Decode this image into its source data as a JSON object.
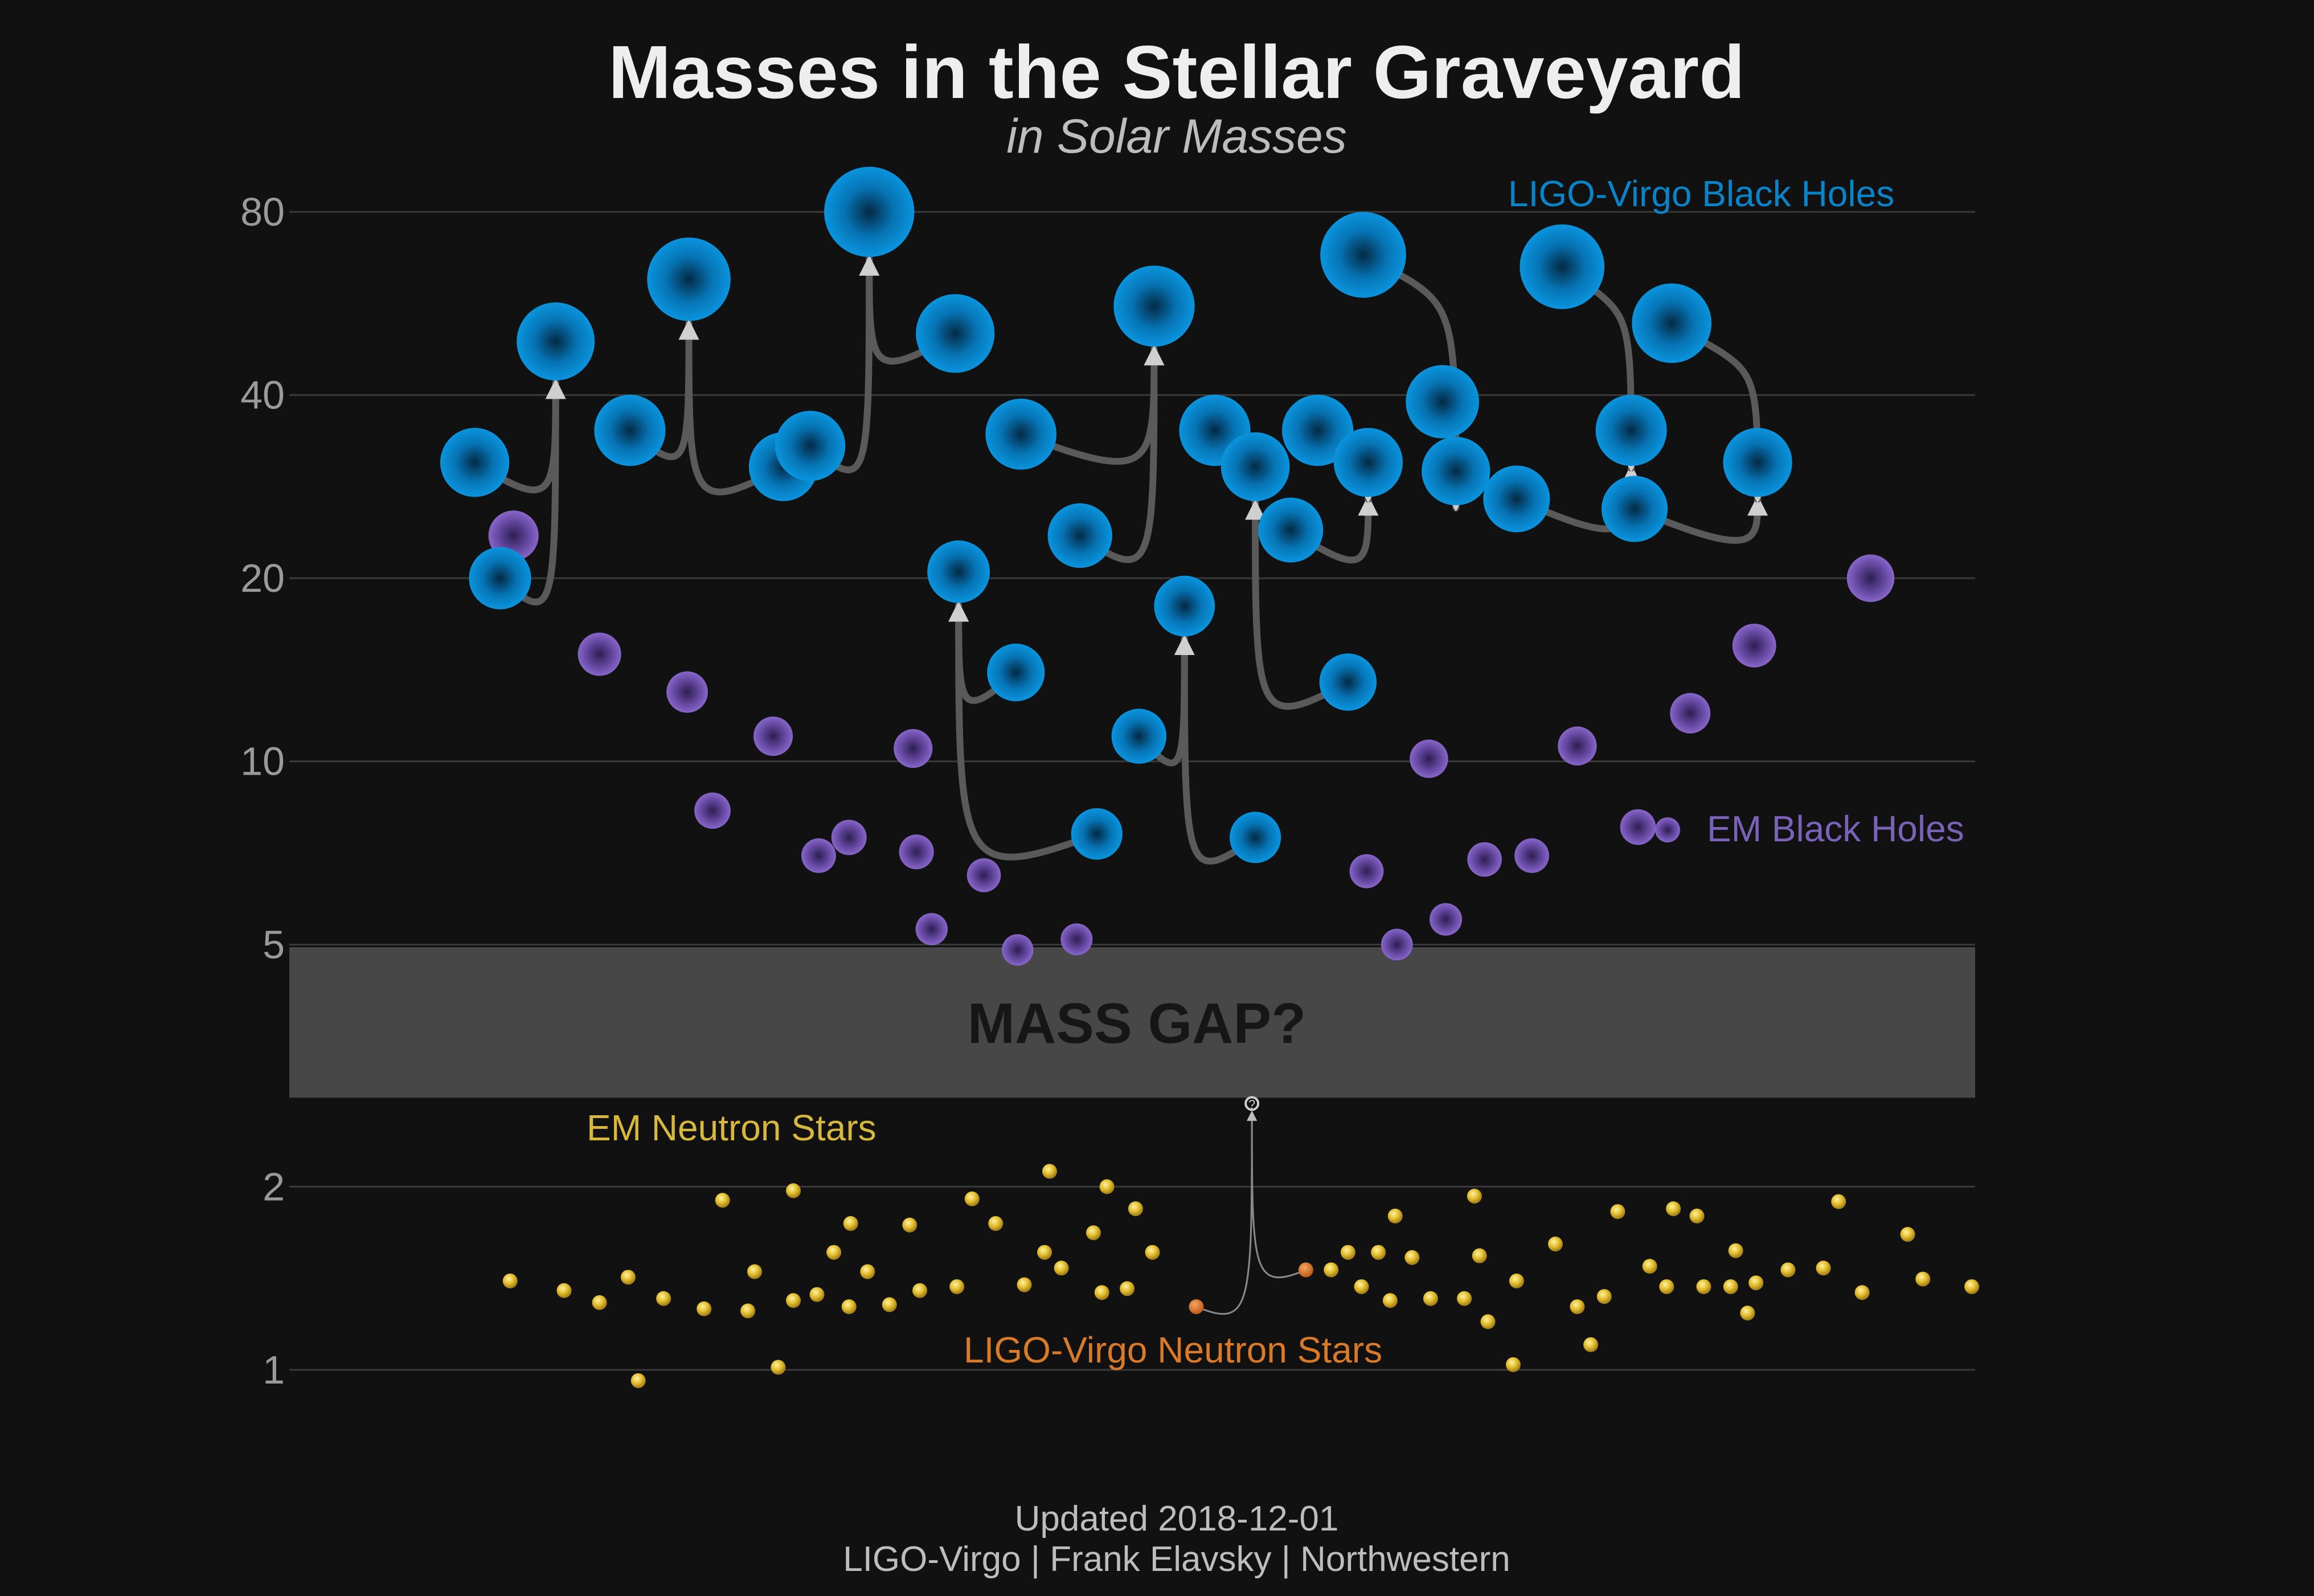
{
  "chart_data": {
    "type": "scatter",
    "title": "Masses in the Stellar Graveyard",
    "subtitle": "in Solar Masses",
    "y_scale": "log",
    "ylim": [
      0.75,
      95
    ],
    "y_ticks": [
      1,
      2,
      5,
      10,
      20,
      40,
      80
    ],
    "grid": true,
    "mass_gap": {
      "label": "MASS GAP?",
      "range": [
        2.8,
        4.95
      ]
    },
    "footer": [
      "Updated 2018-12-01",
      "LIGO-Virgo | Frank Elavsky | Northwestern"
    ],
    "series_labels": {
      "ligo_bh": "LIGO-Virgo Black Holes",
      "em_bh": "EM Black Holes",
      "em_ns": "EM Neutron Stars",
      "ligo_ns": "LIGO-Virgo Neutron Stars"
    },
    "colors": {
      "ligo_bh": "#0a8fd8",
      "em_bh": "#7a5bb8",
      "em_ns": "#e6c234",
      "ligo_ns": "#e07a1e",
      "arrow": "#5a5a5a",
      "gap": "#474747",
      "background": "#111111"
    },
    "ligo_mergers": [
      {
        "p1": [
          0.11,
          31
        ],
        "p2": [
          0.125,
          20
        ],
        "final": [
          0.158,
          49
        ]
      },
      {
        "p1": [
          0.202,
          35
        ],
        "p2": [
          0.293,
          30.5
        ],
        "final": [
          0.237,
          62
        ]
      },
      {
        "p1": [
          0.309,
          33
        ],
        "p2": [
          0.395,
          50.5
        ],
        "final": [
          0.344,
          80
        ]
      },
      {
        "p1": [
          0.431,
          14
        ],
        "p2": [
          0.479,
          7.6
        ],
        "final": [
          0.397,
          20.5
        ]
      },
      {
        "p1": [
          0.469,
          23.5
        ],
        "p2": [
          0.434,
          34.5
        ],
        "final": [
          0.513,
          56
        ]
      },
      {
        "p1": [
          0.504,
          11
        ],
        "p2": [
          0.573,
          7.5
        ],
        "final": [
          0.531,
          18
        ]
      },
      {
        "p1": [
          0.549,
          35
        ],
        "p2": [
          0.628,
          13.5
        ],
        "final": [
          0.573,
          30.5
        ]
      },
      {
        "p1": [
          0.594,
          24
        ],
        "p2": [
          0.61,
          35
        ],
        "final": [
          0.64,
          31
        ]
      },
      {
        "p1": [
          0.637,
          68
        ],
        "p2": [
          0.684,
          39
        ],
        "final": [
          0.692,
          30
        ]
      },
      {
        "p1": [
          0.728,
          27
        ],
        "p2": [
          0.755,
          65
        ],
        "final": [
          0.796,
          35
        ]
      },
      {
        "p1": [
          0.798,
          26
        ],
        "p2": [
          0.82,
          52.5
        ],
        "final": [
          0.871,
          31
        ]
      }
    ],
    "em_black_holes": [
      [
        0.133,
        23.5
      ],
      [
        0.184,
        15
      ],
      [
        0.236,
        13
      ],
      [
        0.251,
        8.3
      ],
      [
        0.287,
        11
      ],
      [
        0.314,
        7
      ],
      [
        0.332,
        7.5
      ],
      [
        0.37,
        10.5
      ],
      [
        0.372,
        7.1
      ],
      [
        0.412,
        6.5
      ],
      [
        0.381,
        5.3
      ],
      [
        0.432,
        4.9
      ],
      [
        0.467,
        5.1
      ],
      [
        0.639,
        6.6
      ],
      [
        0.657,
        5
      ],
      [
        0.676,
        10.1
      ],
      [
        0.686,
        5.5
      ],
      [
        0.709,
        6.9
      ],
      [
        0.737,
        7
      ],
      [
        0.764,
        10.6
      ],
      [
        0.8,
        7.8
      ],
      [
        0.831,
        12
      ],
      [
        0.869,
        15.5
      ],
      [
        0.938,
        20
      ]
    ],
    "em_neutron_stars": [
      [
        0.131,
        1.4
      ],
      [
        0.163,
        1.35
      ],
      [
        0.184,
        1.29
      ],
      [
        0.201,
        1.42
      ],
      [
        0.207,
        0.96
      ],
      [
        0.222,
        1.31
      ],
      [
        0.246,
        1.26
      ],
      [
        0.257,
        1.9
      ],
      [
        0.272,
        1.25
      ],
      [
        0.276,
        1.45
      ],
      [
        0.29,
        1.01
      ],
      [
        0.299,
        1.3
      ],
      [
        0.299,
        1.97
      ],
      [
        0.313,
        1.33
      ],
      [
        0.323,
        1.56
      ],
      [
        0.332,
        1.27
      ],
      [
        0.333,
        1.74
      ],
      [
        0.343,
        1.45
      ],
      [
        0.356,
        1.28
      ],
      [
        0.368,
        1.73
      ],
      [
        0.374,
        1.35
      ],
      [
        0.396,
        1.37
      ],
      [
        0.405,
        1.91
      ],
      [
        0.419,
        1.74
      ],
      [
        0.436,
        1.38
      ],
      [
        0.448,
        1.56
      ],
      [
        0.451,
        2.12
      ],
      [
        0.458,
        1.47
      ],
      [
        0.477,
        1.68
      ],
      [
        0.482,
        1.34
      ],
      [
        0.485,
        2
      ],
      [
        0.497,
        1.36
      ],
      [
        0.502,
        1.84
      ],
      [
        0.512,
        1.56
      ],
      [
        0.618,
        1.46
      ],
      [
        0.628,
        1.56
      ],
      [
        0.636,
        1.37
      ],
      [
        0.646,
        1.56
      ],
      [
        0.653,
        1.3
      ],
      [
        0.656,
        1.79
      ],
      [
        0.666,
        1.53
      ],
      [
        0.677,
        1.31
      ],
      [
        0.697,
        1.31
      ],
      [
        0.703,
        1.93
      ],
      [
        0.706,
        1.54
      ],
      [
        0.711,
        1.2
      ],
      [
        0.726,
        1.02
      ],
      [
        0.728,
        1.4
      ],
      [
        0.751,
        1.61
      ],
      [
        0.764,
        1.27
      ],
      [
        0.772,
        1.1
      ],
      [
        0.78,
        1.32
      ],
      [
        0.788,
        1.82
      ],
      [
        0.807,
        1.48
      ],
      [
        0.817,
        1.37
      ],
      [
        0.821,
        1.84
      ],
      [
        0.835,
        1.79
      ],
      [
        0.839,
        1.37
      ],
      [
        0.855,
        1.37
      ],
      [
        0.858,
        1.57
      ],
      [
        0.865,
        1.24
      ],
      [
        0.87,
        1.39
      ],
      [
        0.889,
        1.46
      ],
      [
        0.91,
        1.47
      ],
      [
        0.919,
        1.89
      ],
      [
        0.933,
        1.34
      ],
      [
        0.96,
        1.67
      ],
      [
        0.969,
        1.41
      ],
      [
        0.998,
        1.37
      ]
    ],
    "ligo_neutron_stars": {
      "inputs": [
        [
          0.538,
          1.27
        ],
        [
          0.603,
          1.46
        ]
      ],
      "final": [
        0.571,
        2.74
      ],
      "final_label": "?"
    }
  }
}
